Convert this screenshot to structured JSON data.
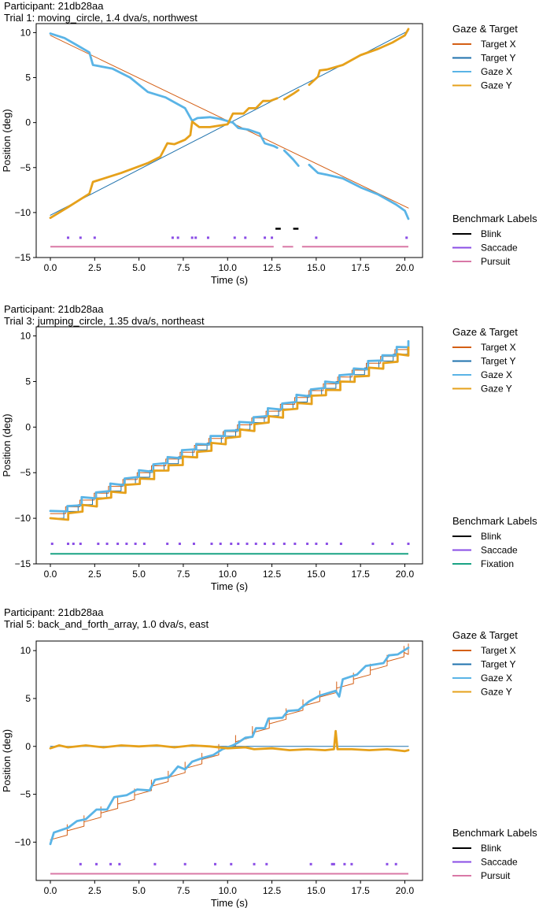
{
  "colors": {
    "target_x": "#d45f15",
    "target_y": "#1f72ad",
    "gaze_x": "#5ab4e6",
    "gaze_y": "#e6a11b",
    "blink": "#000000",
    "saccade": "#8a4de6",
    "pursuit": "#d978a6",
    "fixation": "#1aa384"
  },
  "chart_data": [
    {
      "type": "line",
      "participant_label": "Participant: 21db28aa",
      "trial_label": "Trial 1: moving_circle, 1.4 dva/s, northwest",
      "xlabel": "Time (s)",
      "ylabel": "Position (deg)",
      "xlim": [
        -0.8,
        21.0
      ],
      "ylim": [
        -15,
        11
      ],
      "xticks": [
        0.0,
        2.5,
        5.0,
        7.5,
        10.0,
        12.5,
        15.0,
        17.5,
        20.0
      ],
      "xtick_labels": [
        "0.0",
        "2.5",
        "5.0",
        "7.5",
        "10.0",
        "12.5",
        "15.0",
        "17.5",
        "20.0"
      ],
      "yticks": [
        10,
        5,
        0,
        -5,
        -10,
        -15
      ],
      "ytick_labels": [
        "10",
        "5",
        "0",
        "−5",
        "−10",
        "−15"
      ],
      "legend_gaze_title": "Gaze & Target",
      "legend_gaze": [
        "Target X",
        "Target Y",
        "Gaze X",
        "Gaze Y"
      ],
      "legend_bench_title": "Benchmark Labels",
      "legend_bench": [
        "Blink",
        "Saccade",
        "Pursuit"
      ],
      "target_x": [
        [
          0,
          9.7
        ],
        [
          20.2,
          -9.5
        ]
      ],
      "target_y": [
        [
          0,
          -10.3
        ],
        [
          20.2,
          10.2
        ]
      ],
      "gaze_x": [
        [
          [
            0,
            9.9
          ],
          [
            0.8,
            9.4
          ],
          [
            1.5,
            8.6
          ],
          [
            2.2,
            7.8
          ],
          [
            2.4,
            6.4
          ],
          [
            3.5,
            6.0
          ],
          [
            4.5,
            5.0
          ],
          [
            5.5,
            3.4
          ],
          [
            6.5,
            2.8
          ],
          [
            7.6,
            1.6
          ],
          [
            8.0,
            0.2
          ],
          [
            8.3,
            0.5
          ],
          [
            9.0,
            0.6
          ],
          [
            9.6,
            0.4
          ],
          [
            10.3,
            0.0
          ],
          [
            10.6,
            -0.6
          ],
          [
            11.2,
            -0.8
          ],
          [
            11.8,
            -1.2
          ],
          [
            12.1,
            -2.3
          ],
          [
            12.6,
            -2.6
          ],
          [
            12.8,
            -2.8
          ]
        ],
        [
          [
            13.2,
            -3.1
          ],
          [
            13.7,
            -4.1
          ],
          [
            14.0,
            -4.8
          ]
        ],
        [
          [
            14.6,
            -4.7
          ],
          [
            15.1,
            -5.6
          ],
          [
            15.6,
            -5.8
          ],
          [
            16.5,
            -6.2
          ],
          [
            17.5,
            -7.2
          ],
          [
            18.5,
            -8.0
          ],
          [
            19.5,
            -9.1
          ],
          [
            20.0,
            -9.8
          ],
          [
            20.2,
            -10.7
          ]
        ]
      ],
      "gaze_y": [
        [
          [
            0,
            -10.6
          ],
          [
            1.0,
            -9.4
          ],
          [
            2.2,
            -7.9
          ],
          [
            2.4,
            -6.6
          ],
          [
            4.0,
            -5.6
          ],
          [
            5.5,
            -4.5
          ],
          [
            6.2,
            -3.8
          ],
          [
            6.6,
            -2.3
          ],
          [
            7.0,
            -2.4
          ],
          [
            7.6,
            -1.9
          ],
          [
            7.9,
            -1.4
          ],
          [
            8.0,
            0.1
          ],
          [
            8.4,
            -0.5
          ],
          [
            9.0,
            -0.5
          ],
          [
            10.0,
            -0.2
          ],
          [
            10.3,
            1.0
          ],
          [
            10.9,
            1.0
          ],
          [
            11.2,
            1.6
          ],
          [
            11.6,
            1.6
          ],
          [
            12.0,
            2.4
          ],
          [
            12.4,
            2.4
          ],
          [
            12.8,
            2.7
          ]
        ],
        [
          [
            13.2,
            2.6
          ],
          [
            13.7,
            3.2
          ],
          [
            14.0,
            3.6
          ]
        ],
        [
          [
            14.6,
            4.2
          ],
          [
            15.1,
            5.1
          ],
          [
            15.2,
            5.8
          ],
          [
            15.6,
            5.9
          ],
          [
            16.5,
            6.4
          ],
          [
            17.5,
            7.5
          ],
          [
            18.5,
            8.2
          ],
          [
            19.3,
            8.9
          ],
          [
            20.0,
            9.7
          ],
          [
            20.2,
            10.4
          ]
        ]
      ],
      "blink_segments": [
        [
          12.7,
          13.0
        ],
        [
          13.7,
          14.0
        ]
      ],
      "blink_y": -11.8,
      "saccade_times": [
        1.0,
        1.7,
        2.5,
        6.9,
        7.2,
        8.0,
        8.2,
        8.9,
        10.4,
        11.0,
        12.1,
        12.5,
        15.0,
        20.1
      ],
      "saccade_y": -12.8,
      "base_label": "Pursuit",
      "base_segments": [
        [
          0,
          12.6
        ],
        [
          13.1,
          13.7
        ],
        [
          14.2,
          20.2
        ]
      ],
      "base_y": -13.8
    },
    {
      "type": "line",
      "participant_label": "Participant: 21db28aa",
      "trial_label": "Trial 3: jumping_circle, 1.35 dva/s, northeast",
      "xlabel": "Time (s)",
      "ylabel": "Position (deg)",
      "xlim": [
        -0.8,
        21.0
      ],
      "ylim": [
        -15,
        11
      ],
      "xticks": [
        0.0,
        2.5,
        5.0,
        7.5,
        10.0,
        12.5,
        15.0,
        17.5,
        20.0
      ],
      "xtick_labels": [
        "0.0",
        "2.5",
        "5.0",
        "7.5",
        "10.0",
        "12.5",
        "15.0",
        "17.5",
        "20.0"
      ],
      "yticks": [
        10,
        5,
        0,
        -5,
        -10,
        -15
      ],
      "ytick_labels": [
        "10",
        "5",
        "0",
        "−5",
        "−10",
        "−15"
      ],
      "legend_gaze_title": "Gaze & Target",
      "legend_gaze": [
        "Target X",
        "Target Y",
        "Gaze X",
        "Gaze Y"
      ],
      "legend_bench_title": "Benchmark Labels",
      "legend_bench": [
        "Blink",
        "Saccade",
        "Fixation"
      ],
      "step_series": {
        "start": -9.7,
        "end": 9.3,
        "t0": 0,
        "t1": 20.2,
        "step": 0.75,
        "x_offset": 0.25,
        "y_offset": -0.25,
        "gaze_x_offset": 0.4,
        "gaze_y_offset": -0.4
      },
      "blink_segments": [],
      "saccade_times": [
        0.1,
        1.0,
        1.3,
        1.7,
        2.7,
        3.2,
        3.8,
        4.3,
        4.8,
        5.3,
        6.6,
        7.3,
        8.1,
        9.1,
        9.6,
        10.2,
        10.6,
        11.1,
        11.6,
        12.1,
        12.6,
        13.2,
        13.8,
        14.5,
        15.0,
        15.6,
        16.4,
        18.2,
        19.3,
        20.2
      ],
      "saccade_y": -12.8,
      "base_label": "Fixation",
      "base_segments": [
        [
          0,
          20.2
        ]
      ],
      "base_y": -13.9
    },
    {
      "type": "line",
      "participant_label": "Participant: 21db28aa",
      "trial_label": "Trial 5: back_and_forth_array, 1.0 dva/s, east",
      "xlabel": "Time (s)",
      "ylabel": "Position (deg)",
      "xlim": [
        -0.8,
        21.0
      ],
      "ylim": [
        -14,
        11
      ],
      "xticks": [
        0.0,
        2.5,
        5.0,
        7.5,
        10.0,
        12.5,
        15.0,
        17.5,
        20.0
      ],
      "xtick_labels": [
        "0.0",
        "2.5",
        "5.0",
        "7.5",
        "10.0",
        "12.5",
        "15.0",
        "17.5",
        "20.0"
      ],
      "yticks": [
        10,
        5,
        0,
        -5,
        -10
      ],
      "ytick_labels": [
        "10",
        "5",
        "0",
        "−5",
        "−10"
      ],
      "legend_gaze_title": "Gaze & Target",
      "legend_gaze": [
        "Target X",
        "Target Y",
        "Gaze X",
        "Gaze Y"
      ],
      "legend_bench_title": "Benchmark Labels",
      "legend_bench": [
        "Blink",
        "Saccade",
        "Pursuit"
      ],
      "target_y": [
        [
          0,
          0
        ],
        [
          20.2,
          0
        ]
      ],
      "target_x_sawtooth": {
        "start": -9.6,
        "end": 10.2,
        "t0": 0,
        "t1": 20.2,
        "period": 0.95
      },
      "gaze_x": [
        [
          [
            0,
            -10.2
          ],
          [
            0.2,
            -9.0
          ],
          [
            1.0,
            -8.5
          ],
          [
            1.5,
            -7.8
          ],
          [
            2.0,
            -7.6
          ],
          [
            2.6,
            -6.6
          ],
          [
            3.2,
            -6.6
          ],
          [
            3.6,
            -5.3
          ],
          [
            4.3,
            -5.1
          ],
          [
            4.9,
            -4.5
          ],
          [
            5.6,
            -4.6
          ],
          [
            5.9,
            -3.5
          ],
          [
            6.7,
            -3.2
          ],
          [
            7.2,
            -2.1
          ],
          [
            7.6,
            -2.4
          ],
          [
            8.0,
            -1.6
          ],
          [
            8.6,
            -1.2
          ],
          [
            9.2,
            -0.9
          ],
          [
            9.7,
            -0.3
          ],
          [
            10.3,
            0.1
          ],
          [
            10.6,
            0.4
          ],
          [
            11.0,
            0.9
          ],
          [
            11.4,
            1.0
          ],
          [
            11.6,
            1.9
          ],
          [
            12.1,
            1.9
          ],
          [
            12.3,
            2.9
          ],
          [
            13.1,
            3.0
          ],
          [
            13.4,
            3.7
          ],
          [
            14.0,
            3.8
          ],
          [
            14.6,
            4.7
          ],
          [
            15.2,
            5.3
          ],
          [
            16.1,
            5.8
          ],
          [
            16.3,
            5.2
          ],
          [
            16.5,
            7.0
          ],
          [
            17.3,
            7.5
          ],
          [
            17.8,
            8.4
          ],
          [
            18.8,
            8.7
          ],
          [
            19.1,
            9.5
          ],
          [
            19.6,
            9.6
          ],
          [
            20.2,
            10.3
          ]
        ]
      ],
      "gaze_y": [
        [
          [
            0,
            -0.2
          ],
          [
            0.5,
            0.1
          ],
          [
            1.0,
            -0.1
          ],
          [
            2.0,
            0.1
          ],
          [
            3.0,
            -0.1
          ],
          [
            4.0,
            0.1
          ],
          [
            5.0,
            0.0
          ],
          [
            6.0,
            0.1
          ],
          [
            7.0,
            -0.1
          ],
          [
            8.0,
            0.1
          ],
          [
            9.0,
            0.0
          ],
          [
            10.0,
            -0.2
          ],
          [
            11.0,
            -0.1
          ],
          [
            11.5,
            -0.3
          ],
          [
            12.5,
            -0.2
          ],
          [
            13.5,
            -0.4
          ],
          [
            14.5,
            -0.3
          ],
          [
            15.5,
            -0.4
          ],
          [
            16.0,
            -0.3
          ],
          [
            16.1,
            1.6
          ],
          [
            16.2,
            -0.3
          ],
          [
            17.0,
            -0.3
          ],
          [
            18.0,
            -0.4
          ],
          [
            19.0,
            -0.3
          ],
          [
            20.0,
            -0.5
          ],
          [
            20.2,
            -0.4
          ]
        ]
      ],
      "blink_segments": [],
      "saccade_times": [
        1.7,
        2.6,
        3.4,
        3.9,
        5.9,
        7.6,
        9.3,
        10.2,
        11.5,
        12.2,
        14.7,
        15.9,
        16.0,
        16.6,
        17.0,
        19.0,
        19.5
      ],
      "saccade_y": -12.3,
      "base_label": "Pursuit",
      "base_segments": [
        [
          0,
          20.2
        ]
      ],
      "base_y": -13.3
    }
  ]
}
